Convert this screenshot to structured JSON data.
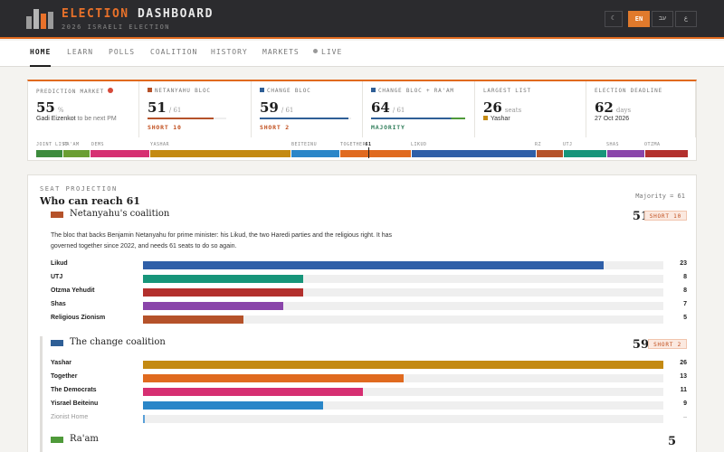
{
  "header": {
    "brand_part1": "ELECTION",
    "brand_part2": "DASHBOARD",
    "subtitle": "2026 ISRAELI ELECTION",
    "theme_icon": "moon-icon",
    "lang_en": "EN",
    "lang_he": "עב",
    "lang_ar": "ع"
  },
  "nav": {
    "items": [
      "HOME",
      "LEARN",
      "POLLS",
      "COALITION",
      "HISTORY",
      "MARKETS",
      "LIVE"
    ]
  },
  "stats": {
    "market": {
      "label": "PREDICTION MARKET",
      "value": "55",
      "unit": "%",
      "candidate": "Gadi Eizenkot",
      "desc": "to be next PM",
      "dot_color": "#d64a3a"
    },
    "netanyahu": {
      "label": "NETANYAHU BLOC",
      "value": "51",
      "unit": "/ 61",
      "status": "SHORT 10",
      "progress": 0.836,
      "color": "#b5522a"
    },
    "change": {
      "label": "CHANGE BLOC",
      "value": "59",
      "unit": "/ 61",
      "status": "SHORT 2",
      "progress": 0.967,
      "color": "#2f5f96"
    },
    "change_raam": {
      "label": "CHANGE BLOC + RA'AM",
      "value": "64",
      "unit": "/ 61",
      "status": "MAJORITY",
      "progress": 1.0,
      "color": "#2f5f96",
      "color2": "#4f9a3a"
    },
    "largest": {
      "label": "LARGEST LIST",
      "value": "26",
      "unit": "seats",
      "party": "Yashar",
      "party_color": "#c48a12"
    },
    "deadline": {
      "label": "ELECTION DEADLINE",
      "value": "62",
      "unit": "days",
      "date": "27 Oct 2026"
    }
  },
  "seat_strip": {
    "marker": "61",
    "labels": [
      "JOINT LIST",
      "RA'AM",
      "DEMS",
      "YASHAR",
      "BEITEINU",
      "TOGETHER",
      "LIKUD",
      "RZ",
      "UTJ",
      "SHAS",
      "OTZMA"
    ],
    "segments": [
      {
        "name": "Joint List",
        "seats": 5,
        "color": "#3d8b3d"
      },
      {
        "name": "Ra'am",
        "seats": 5,
        "color": "#6a9e32"
      },
      {
        "name": "Democrats",
        "seats": 11,
        "color": "#d62f72"
      },
      {
        "name": "Yashar",
        "seats": 26,
        "color": "#c48a12"
      },
      {
        "name": "Beiteinu",
        "seats": 9,
        "color": "#2a86c8"
      },
      {
        "name": "Together",
        "seats": 13,
        "color": "#e06a1f"
      },
      {
        "name": "Likud",
        "seats": 23,
        "color": "#2f5fa8"
      },
      {
        "name": "RZ",
        "seats": 5,
        "color": "#b5522a"
      },
      {
        "name": "UTJ",
        "seats": 8,
        "color": "#17957a"
      },
      {
        "name": "Shas",
        "seats": 7,
        "color": "#8a45aa"
      },
      {
        "name": "Otzma",
        "seats": 8,
        "color": "#b3302d"
      }
    ]
  },
  "projection": {
    "section_label": "SEAT PROJECTION",
    "heading": "Who can reach 61",
    "majority_note": "Majority = 61",
    "max_seats": 26,
    "coalitions": [
      {
        "name": "Netanyahu's coalition",
        "seats": "51",
        "badge": "SHORT 10",
        "color": "#b5522a",
        "description": "The bloc that backs Benjamin Netanyahu for prime minister: his Likud, the two Haredi parties and the religious right. It has governed together since 2022, and needs 61 seats to do so again.",
        "parties": [
          {
            "name": "Likud",
            "seats": 23,
            "label": "23",
            "color": "#2f5fa8"
          },
          {
            "name": "UTJ",
            "seats": 8,
            "label": "8",
            "color": "#17957a"
          },
          {
            "name": "Otzma Yehudit",
            "seats": 8,
            "label": "8",
            "color": "#b3302d"
          },
          {
            "name": "Shas",
            "seats": 7,
            "label": "7",
            "color": "#8a45aa"
          },
          {
            "name": "Religious Zionism",
            "seats": 5,
            "label": "5",
            "color": "#b5522a"
          }
        ]
      },
      {
        "name": "The change coalition",
        "seats": "59",
        "badge": "SHORT 2",
        "color": "#2f5f96",
        "parties": [
          {
            "name": "Yashar",
            "seats": 26,
            "label": "26",
            "color": "#c48a12"
          },
          {
            "name": "Together",
            "seats": 13,
            "label": "13",
            "color": "#e06a1f"
          },
          {
            "name": "The Democrats",
            "seats": 11,
            "label": "11",
            "color": "#d62f72"
          },
          {
            "name": "Yisrael Beiteinu",
            "seats": 9,
            "label": "9",
            "color": "#2a86c8"
          },
          {
            "name": "Zionist Home",
            "seats": 0,
            "label": "–",
            "color": "#5aa0d8",
            "muted": true
          }
        ]
      },
      {
        "name": "Ra'am",
        "seats": "5",
        "color": "#4f9a3a"
      }
    ]
  }
}
